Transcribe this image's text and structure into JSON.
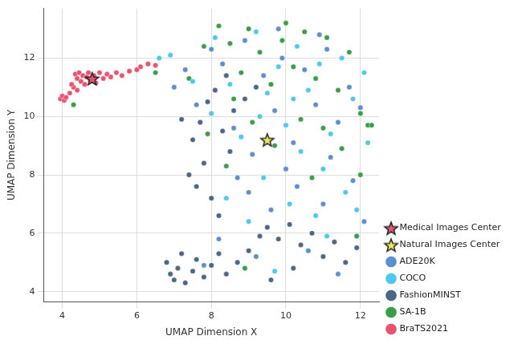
{
  "chart_data": {
    "type": "scatter",
    "x_label": "UMAP Dimension X",
    "y_label": "UMAP Dimension Y",
    "xlim": [
      3.5,
      12.5
    ],
    "ylim": [
      3.65,
      13.7
    ],
    "xticks": [
      4,
      6,
      8,
      10,
      12
    ],
    "yticks": [
      4,
      6,
      8,
      10,
      12
    ],
    "grid": true,
    "legend": "right",
    "series": [
      {
        "name": "Medical Images Center",
        "color": "#e8536f",
        "marker": "star",
        "x": [
          4.8
        ],
        "y": [
          11.3
        ]
      },
      {
        "name": "Natural Images Center",
        "color": "#e8e85a",
        "marker": "star",
        "x": [
          9.5
        ],
        "y": [
          9.2
        ]
      },
      {
        "name": "ADE20K",
        "color": "#5b8fd0",
        "marker": "circle",
        "x": [
          7.0,
          7.3,
          7.6,
          8.0,
          8.3,
          8.6,
          8.9,
          9.1,
          9.4,
          9.7,
          9.9,
          10.2,
          10.5,
          10.8,
          11.1,
          11.4,
          11.7,
          12.0,
          9.0,
          9.6,
          10.3,
          11.0,
          11.8,
          8.2,
          9.2,
          10.6,
          11.4,
          12.1,
          7.8,
          10.0,
          11.2,
          8.7,
          9.8,
          10.9
        ],
        "y": [
          11.0,
          11.6,
          10.4,
          12.3,
          11.8,
          9.6,
          12.6,
          8.7,
          11.4,
          10.2,
          12.0,
          9.1,
          11.6,
          10.4,
          12.3,
          9.8,
          11.0,
          10.3,
          7.4,
          6.8,
          7.6,
          7.0,
          7.8,
          5.8,
          5.2,
          5.4,
          4.6,
          6.4,
          4.9,
          8.2,
          8.6,
          7.9,
          13.0,
          12.8
        ]
      },
      {
        "name": "COCO",
        "color": "#4fc8f0",
        "marker": "circle",
        "x": [
          6.6,
          6.9,
          7.5,
          8.1,
          8.5,
          8.8,
          9.2,
          9.5,
          9.8,
          10.0,
          10.3,
          10.6,
          10.9,
          11.2,
          11.5,
          11.8,
          12.1,
          10.4,
          11.0,
          11.6,
          9.4,
          10.1,
          10.8,
          11.9,
          9.0,
          8.4,
          9.7,
          11.1,
          12.2,
          10.2,
          9.3,
          8.0
        ],
        "y": [
          12.0,
          12.1,
          11.2,
          12.7,
          11.1,
          9.3,
          12.9,
          10.8,
          11.7,
          9.7,
          12.4,
          10.9,
          11.8,
          9.4,
          12.0,
          10.6,
          11.5,
          8.8,
          8.2,
          7.4,
          7.9,
          7.0,
          6.6,
          6.8,
          6.4,
          7.2,
          4.7,
          5.9,
          9.1,
          10.6,
          10.0,
          10.1
        ]
      },
      {
        "name": "FashionMINST",
        "color": "#4a6785",
        "marker": "circle",
        "x": [
          6.8,
          6.9,
          7.0,
          7.1,
          7.2,
          7.3,
          7.5,
          7.6,
          7.8,
          8.0,
          8.2,
          8.4,
          8.7,
          9.0,
          9.3,
          9.5,
          9.8,
          10.1,
          10.4,
          10.7,
          11.0,
          11.3,
          11.6,
          11.9,
          10.2,
          9.6,
          7.4,
          7.6,
          7.8,
          7.5,
          7.7,
          7.9,
          8.1,
          8.3,
          8.0,
          8.5,
          8.2,
          8.6,
          7.2,
          8.9,
          9.2,
          8.4
        ],
        "y": [
          5.0,
          4.6,
          4.4,
          4.8,
          5.3,
          4.3,
          4.7,
          5.1,
          4.5,
          4.9,
          5.3,
          4.6,
          5.0,
          5.4,
          5.9,
          6.2,
          5.8,
          6.3,
          5.6,
          6.0,
          5.2,
          5.7,
          5.0,
          5.5,
          4.8,
          4.4,
          8.0,
          7.6,
          8.4,
          9.2,
          9.8,
          10.5,
          10.9,
          9.5,
          7.2,
          8.8,
          6.6,
          10.2,
          9.9,
          10.6,
          11.0,
          11.4
        ]
      },
      {
        "name": "SA-1B",
        "color": "#3a9e48",
        "marker": "circle",
        "x": [
          4.3,
          6.5,
          7.4,
          7.8,
          8.2,
          8.5,
          8.8,
          9.0,
          9.3,
          9.6,
          9.9,
          10.2,
          10.5,
          10.8,
          11.1,
          11.4,
          11.7,
          12.0,
          12.2,
          8.6,
          9.1,
          9.7,
          10.4,
          11.0,
          11.5,
          12.0,
          8.4,
          7.9,
          10.7,
          11.9,
          8.9,
          10.0,
          12.3
        ],
        "y": [
          10.4,
          11.5,
          11.3,
          12.4,
          13.1,
          12.5,
          11.5,
          13.0,
          12.2,
          11.1,
          12.6,
          11.7,
          12.9,
          11.3,
          12.7,
          10.9,
          12.2,
          10.1,
          9.7,
          10.6,
          9.8,
          9.0,
          9.9,
          9.6,
          8.9,
          8.0,
          8.3,
          9.4,
          7.9,
          5.9,
          4.8,
          13.2,
          9.7
        ]
      },
      {
        "name": "BraTS2021",
        "color": "#e8536f",
        "marker": "circle",
        "x": [
          3.95,
          4.0,
          4.05,
          4.1,
          4.2,
          4.3,
          4.35,
          4.4,
          4.45,
          4.5,
          4.55,
          4.6,
          4.65,
          4.7,
          4.75,
          4.85,
          4.9,
          5.0,
          5.1,
          5.2,
          5.3,
          5.45,
          5.6,
          5.8,
          6.0,
          6.1,
          6.3,
          6.5,
          4.4,
          4.25
        ],
        "y": [
          10.6,
          10.7,
          10.55,
          10.65,
          10.8,
          11.0,
          11.45,
          11.3,
          11.5,
          11.2,
          11.4,
          11.1,
          11.35,
          11.5,
          11.25,
          11.4,
          11.15,
          11.5,
          11.3,
          11.45,
          11.35,
          11.5,
          11.4,
          11.55,
          11.6,
          11.7,
          11.8,
          11.75,
          10.9,
          11.1
        ]
      }
    ]
  }
}
